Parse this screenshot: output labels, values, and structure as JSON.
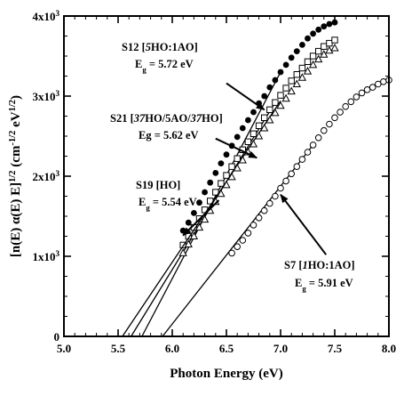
{
  "chart_data": {
    "type": "scatter",
    "title": "",
    "xlabel": "Photon Energy (eV)",
    "ylabel": "[n(E) α(E) E]^{1/2} (cm^{-1/2} eV^{1/2})",
    "xlim": [
      5.0,
      8.0
    ],
    "ylim": [
      0,
      4000
    ],
    "x_ticks": [
      5.0,
      5.5,
      6.0,
      6.5,
      7.0,
      7.5,
      8.0
    ],
    "x_tick_labels": [
      "5.0",
      "5.5",
      "6.0",
      "6.5",
      "7.0",
      "7.5",
      "8.0"
    ],
    "y_ticks": [
      0,
      1000,
      2000,
      3000,
      4000
    ],
    "y_tick_labels": [
      "0",
      "1x10^3",
      "2x10^3",
      "3x10^3",
      "4x10^3"
    ],
    "grid": false,
    "legend": "none",
    "series": [
      {
        "marker": "filled-circle",
        "x": [
          6.1,
          6.15,
          6.2,
          6.25,
          6.3,
          6.35,
          6.4,
          6.45,
          6.5,
          6.55,
          6.6,
          6.65,
          6.7,
          6.75,
          6.8,
          6.85,
          6.9,
          6.95,
          7.0,
          7.05,
          7.1,
          7.15,
          7.2,
          7.25,
          7.3,
          7.35,
          7.4,
          7.45,
          7.5
        ],
        "y": [
          1320,
          1420,
          1540,
          1670,
          1800,
          1920,
          2040,
          2160,
          2270,
          2380,
          2490,
          2600,
          2700,
          2800,
          2910,
          3000,
          3110,
          3200,
          3300,
          3390,
          3480,
          3560,
          3640,
          3720,
          3780,
          3830,
          3870,
          3900,
          3920
        ],
        "fit": {
          "x0": 5.72,
          "x1": 7.0,
          "y1": 3300
        }
      },
      {
        "marker": "open-square",
        "x": [
          6.1,
          6.15,
          6.2,
          6.25,
          6.3,
          6.35,
          6.4,
          6.45,
          6.5,
          6.55,
          6.6,
          6.65,
          6.7,
          6.75,
          6.8,
          6.85,
          6.9,
          6.95,
          7.0,
          7.05,
          7.1,
          7.15,
          7.2,
          7.25,
          7.3,
          7.35,
          7.4,
          7.45,
          7.5
        ],
        "y": [
          1140,
          1250,
          1360,
          1470,
          1580,
          1690,
          1800,
          1910,
          2010,
          2120,
          2220,
          2330,
          2430,
          2530,
          2630,
          2730,
          2830,
          2920,
          3010,
          3100,
          3190,
          3270,
          3350,
          3430,
          3500,
          3560,
          3620,
          3660,
          3700
        ],
        "fit": {
          "x0": 5.62,
          "x1": 6.95,
          "y1": 2920
        }
      },
      {
        "marker": "open-triangle",
        "x": [
          6.1,
          6.15,
          6.2,
          6.25,
          6.3,
          6.35,
          6.4,
          6.45,
          6.5,
          6.55,
          6.6,
          6.65,
          6.7,
          6.75,
          6.8,
          6.85,
          6.9,
          6.95,
          7.0,
          7.05,
          7.1,
          7.15,
          7.2,
          7.25,
          7.3,
          7.35,
          7.4,
          7.45,
          7.5
        ],
        "y": [
          1040,
          1150,
          1250,
          1360,
          1460,
          1570,
          1680,
          1780,
          1890,
          1990,
          2100,
          2200,
          2300,
          2400,
          2500,
          2600,
          2700,
          2790,
          2880,
          2970,
          3060,
          3150,
          3230,
          3310,
          3390,
          3460,
          3520,
          3570,
          3600
        ],
        "fit": {
          "x0": 5.54,
          "x1": 7.0,
          "y1": 2940
        }
      },
      {
        "marker": "open-circle",
        "x": [
          6.55,
          6.6,
          6.65,
          6.7,
          6.75,
          6.8,
          6.85,
          6.9,
          6.95,
          7.0,
          7.05,
          7.1,
          7.15,
          7.2,
          7.25,
          7.3,
          7.35,
          7.4,
          7.45,
          7.5,
          7.55,
          7.6,
          7.65,
          7.7,
          7.75,
          7.8,
          7.85,
          7.9,
          7.95,
          8.0
        ],
        "y": [
          1040,
          1120,
          1200,
          1290,
          1390,
          1480,
          1570,
          1660,
          1750,
          1850,
          1940,
          2030,
          2120,
          2210,
          2300,
          2390,
          2480,
          2570,
          2650,
          2730,
          2800,
          2870,
          2930,
          2990,
          3040,
          3080,
          3110,
          3150,
          3180,
          3200
        ],
        "fit": {
          "x0": 5.91,
          "x1": 7.3,
          "y1": 2390
        }
      }
    ],
    "annotations": [
      {
        "line1": "S12 [5HO:1AO]",
        "line2": "E_g = 5.72 eV",
        "arrow_from": [
          6.5,
          3160
        ],
        "arrow_to": [
          6.85,
          2830
        ]
      },
      {
        "line1": "S21 [37HO/5AO/37HO]",
        "line2": "Eg = 5.62 eV",
        "arrow_from": [
          6.4,
          2470
        ],
        "arrow_to": [
          6.78,
          2230
        ]
      },
      {
        "line1": "S19 [HO]",
        "line2": "E_g = 5.54 eV",
        "arrow_from": [
          6.43,
          1700
        ],
        "arrow_to": [
          6.1,
          1260
        ]
      },
      {
        "line1": "S7 [1HO:1AO]",
        "line2": "E_g = 5.91 eV",
        "arrow_from": [
          7.42,
          1020
        ],
        "arrow_to": [
          7.0,
          1770
        ]
      }
    ]
  }
}
